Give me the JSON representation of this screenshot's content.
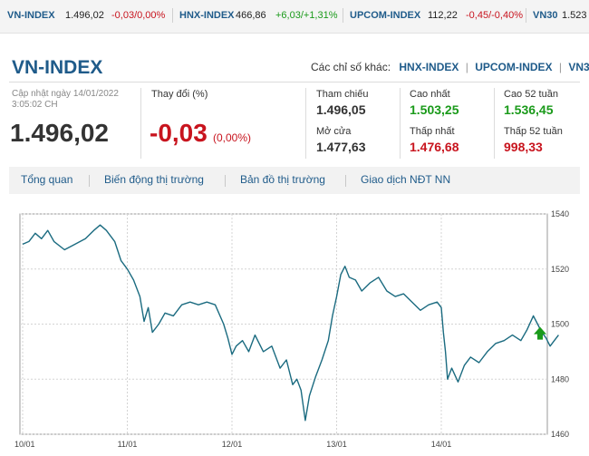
{
  "ticker": [
    {
      "name": "VN-INDEX",
      "value": "1.496,02",
      "change": "-0,03/0,00%",
      "dir": "down"
    },
    {
      "name": "HNX-INDEX",
      "value": "466,86",
      "change": "+6,03/+1,31%",
      "dir": "up"
    },
    {
      "name": "UPCOM-INDEX",
      "value": "112,22",
      "change": "-0,45/-0,40%",
      "dir": "down"
    },
    {
      "name": "VN30",
      "value": "1.523",
      "change": "",
      "dir": ""
    }
  ],
  "header": {
    "title": "VN-INDEX",
    "other_label": "Các chỉ số khác:",
    "other_links": [
      "HNX-INDEX",
      "UPCOM-INDEX",
      "VN30"
    ]
  },
  "summary": {
    "updated_line1": "Cập nhật ngày 14/01/2022",
    "updated_line2": "3:05:02 CH",
    "value": "1.496,02",
    "change_label": "Thay đổi (%)",
    "change_value": "-0,03",
    "change_pct": "(0,00%)"
  },
  "stats": {
    "ref_label": "Tham chiếu",
    "ref_value": "1.496,05",
    "open_label": "Mở cửa",
    "open_value": "1.477,63",
    "high_label": "Cao nhất",
    "high_value": "1.503,25",
    "low_label": "Thấp nhất",
    "low_value": "1.476,68",
    "high52_label": "Cao 52 tuần",
    "high52_value": "1.536,45",
    "low52_label": "Thấp 52 tuần",
    "low52_value": "998,33"
  },
  "tabs": [
    "Tổng quan",
    "Biến động thị trường",
    "Bản đồ thị trường",
    "Giao dịch NĐT NN"
  ],
  "colors": {
    "brand": "#1f5b8a",
    "up": "#1a9a1a",
    "down": "#c8141e",
    "line": "#1b6b80"
  },
  "chart_data": {
    "type": "line",
    "x_ticks": [
      "10/01",
      "11/01",
      "12/01",
      "13/01",
      "14/01"
    ],
    "y_ticks": [
      1460,
      1480,
      1500,
      1520,
      1540
    ],
    "ylim": [
      1460,
      1540
    ],
    "series": [
      {
        "values": [
          [
            0.0,
            1529
          ],
          [
            0.06,
            1530
          ],
          [
            0.12,
            1533
          ],
          [
            0.18,
            1531
          ],
          [
            0.24,
            1534
          ],
          [
            0.3,
            1530
          ],
          [
            0.4,
            1527
          ],
          [
            0.5,
            1529
          ],
          [
            0.6,
            1531
          ],
          [
            0.68,
            1534
          ],
          [
            0.74,
            1536
          ],
          [
            0.8,
            1534
          ],
          [
            0.88,
            1530
          ],
          [
            0.94,
            1523
          ],
          [
            1.0,
            1520
          ],
          [
            1.06,
            1516
          ],
          [
            1.12,
            1510
          ],
          [
            1.16,
            1501
          ],
          [
            1.2,
            1506
          ],
          [
            1.24,
            1497
          ],
          [
            1.3,
            1500
          ],
          [
            1.36,
            1504
          ],
          [
            1.44,
            1503
          ],
          [
            1.52,
            1507
          ],
          [
            1.6,
            1508
          ],
          [
            1.68,
            1507
          ],
          [
            1.76,
            1508
          ],
          [
            1.84,
            1507
          ],
          [
            1.92,
            1500
          ],
          [
            1.96,
            1495
          ],
          [
            2.0,
            1489
          ],
          [
            2.04,
            1492
          ],
          [
            2.1,
            1494
          ],
          [
            2.16,
            1490
          ],
          [
            2.22,
            1496
          ],
          [
            2.3,
            1490
          ],
          [
            2.38,
            1492
          ],
          [
            2.46,
            1484
          ],
          [
            2.52,
            1487
          ],
          [
            2.58,
            1478
          ],
          [
            2.62,
            1480
          ],
          [
            2.66,
            1476
          ],
          [
            2.7,
            1465
          ],
          [
            2.74,
            1474
          ],
          [
            2.8,
            1481
          ],
          [
            2.86,
            1487
          ],
          [
            2.92,
            1494
          ],
          [
            2.96,
            1503
          ],
          [
            3.0,
            1510
          ],
          [
            3.04,
            1518
          ],
          [
            3.08,
            1521
          ],
          [
            3.12,
            1517
          ],
          [
            3.18,
            1516
          ],
          [
            3.24,
            1512
          ],
          [
            3.32,
            1515
          ],
          [
            3.4,
            1517
          ],
          [
            3.48,
            1512
          ],
          [
            3.56,
            1510
          ],
          [
            3.64,
            1511
          ],
          [
            3.72,
            1508
          ],
          [
            3.8,
            1505
          ],
          [
            3.88,
            1507
          ],
          [
            3.96,
            1508
          ],
          [
            4.0,
            1506
          ],
          [
            4.02,
            1497
          ],
          [
            4.04,
            1490
          ],
          [
            4.06,
            1480
          ],
          [
            4.1,
            1484
          ],
          [
            4.16,
            1479
          ],
          [
            4.22,
            1485
          ],
          [
            4.28,
            1488
          ],
          [
            4.36,
            1486
          ],
          [
            4.44,
            1490
          ],
          [
            4.52,
            1493
          ],
          [
            4.6,
            1494
          ],
          [
            4.68,
            1496
          ],
          [
            4.76,
            1494
          ],
          [
            4.82,
            1498
          ],
          [
            4.88,
            1503
          ],
          [
            4.92,
            1500
          ],
          [
            4.96,
            1497
          ],
          [
            5.0,
            1495
          ],
          [
            5.04,
            1492
          ],
          [
            5.08,
            1494
          ],
          [
            5.12,
            1496
          ]
        ],
        "last_marker": "up-arrow"
      }
    ]
  }
}
